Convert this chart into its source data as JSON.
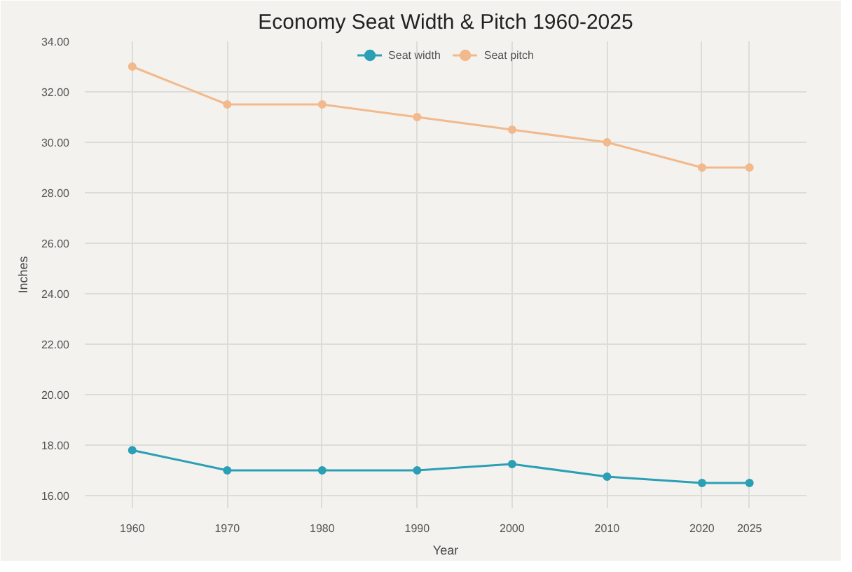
{
  "chart_data": {
    "type": "line",
    "title": "Economy Seat Width & Pitch 1960-2025",
    "xlabel": "Year",
    "ylabel": "Inches",
    "x": [
      1960,
      1970,
      1980,
      1990,
      2000,
      2010,
      2020,
      2025
    ],
    "series": [
      {
        "name": "Seat width",
        "color": "#2a9fb5",
        "values": [
          17.8,
          17.0,
          17.0,
          17.0,
          17.25,
          16.75,
          16.5,
          16.5
        ]
      },
      {
        "name": "Seat pitch",
        "color": "#f2b98c",
        "values": [
          33.0,
          31.5,
          31.5,
          31.0,
          30.5,
          30.0,
          29.0,
          29.0
        ]
      }
    ],
    "xlim": [
      1955,
      2031
    ],
    "xticks": [
      1960,
      1970,
      1980,
      1990,
      2000,
      2010,
      2020,
      2025
    ],
    "ylim": [
      15.5,
      34
    ],
    "yticks": [
      {
        "value": 16,
        "label": "16.00"
      },
      {
        "value": 18,
        "label": "18.00"
      },
      {
        "value": 20,
        "label": "20.00"
      },
      {
        "value": 22,
        "label": "22.00"
      },
      {
        "value": 24,
        "label": "24.00"
      },
      {
        "value": 26,
        "label": "26.00"
      },
      {
        "value": 28,
        "label": "28.00"
      },
      {
        "value": 30,
        "label": "30.00"
      },
      {
        "value": 32,
        "label": "32.00"
      },
      {
        "value": 34,
        "label": "34.00"
      }
    ],
    "grid": true,
    "legend": "top",
    "marker": "circle",
    "line_style": "solid"
  }
}
